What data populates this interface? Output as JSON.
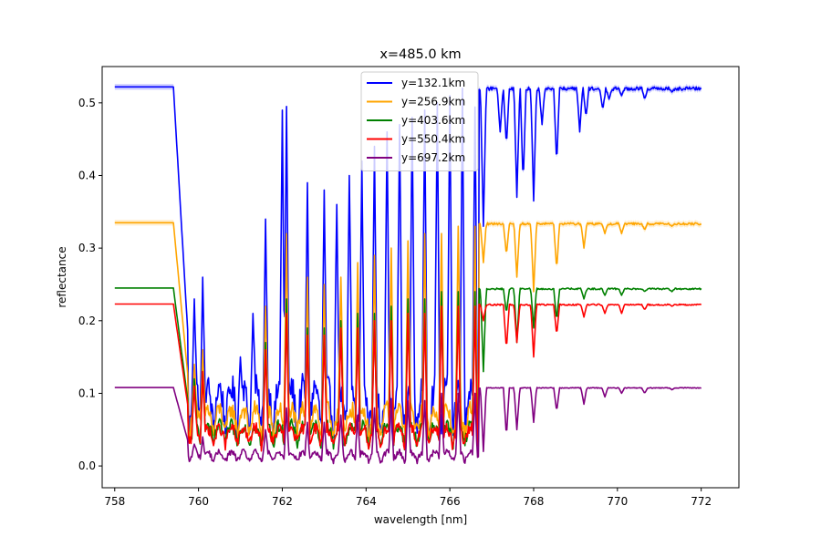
{
  "chart_data": {
    "type": "line",
    "title": "x=485.0 km",
    "xlabel": "wavelength [nm]",
    "ylabel": "reflectance",
    "xlim": [
      757.7,
      772.9
    ],
    "ylim": [
      -0.03,
      0.55
    ],
    "x_ticks": [
      758,
      760,
      762,
      764,
      766,
      768,
      770,
      772
    ],
    "x_tick_labels": [
      "758",
      "760",
      "762",
      "764",
      "766",
      "768",
      "770",
      "772"
    ],
    "y_ticks": [
      0.0,
      0.1,
      0.2,
      0.3,
      0.4,
      0.5
    ],
    "y_tick_labels": [
      "0.0",
      "0.1",
      "0.2",
      "0.3",
      "0.4",
      "0.5"
    ],
    "grid": false,
    "legend_position": "top-center",
    "x_range": [
      758,
      772
    ],
    "band_edge_nm": 759.5,
    "series": [
      {
        "name": "y=132.1km",
        "color": "#0000ff",
        "continuum": 0.522,
        "minimum": 0.03,
        "shaded_band": true,
        "peaks": [
          [
            759.9,
            0.23
          ],
          [
            760.1,
            0.26
          ],
          [
            761.0,
            0.15
          ],
          [
            761.3,
            0.21
          ],
          [
            761.6,
            0.34
          ],
          [
            762.0,
            0.49
          ],
          [
            762.1,
            0.495
          ],
          [
            762.6,
            0.39
          ],
          [
            763.0,
            0.38
          ],
          [
            763.3,
            0.36
          ],
          [
            763.6,
            0.4
          ],
          [
            763.9,
            0.42
          ],
          [
            764.2,
            0.44
          ],
          [
            764.5,
            0.46
          ],
          [
            764.8,
            0.47
          ],
          [
            765.1,
            0.48
          ],
          [
            765.4,
            0.49
          ],
          [
            765.7,
            0.5
          ],
          [
            766.0,
            0.51
          ],
          [
            766.3,
            0.52
          ],
          [
            766.6,
            0.52
          ]
        ],
        "dips": [
          [
            766.55,
            0.43
          ],
          [
            766.8,
            0.33
          ],
          [
            767.2,
            0.46
          ],
          [
            767.35,
            0.44
          ],
          [
            767.6,
            0.37
          ],
          [
            767.75,
            0.39
          ],
          [
            768.0,
            0.365
          ],
          [
            768.2,
            0.47
          ],
          [
            768.55,
            0.415
          ],
          [
            769.1,
            0.46
          ],
          [
            769.25,
            0.48
          ],
          [
            769.65,
            0.49
          ],
          [
            769.8,
            0.505
          ],
          [
            770.1,
            0.51
          ],
          [
            770.65,
            0.505
          ],
          [
            771.3,
            0.515
          ]
        ]
      },
      {
        "name": "y=256.9km",
        "color": "#ffa500",
        "continuum": 0.335,
        "minimum": 0.03,
        "shaded_band": true,
        "peaks": [
          [
            759.9,
            0.14
          ],
          [
            760.1,
            0.16
          ],
          [
            761.6,
            0.22
          ],
          [
            762.1,
            0.32
          ],
          [
            762.6,
            0.26
          ],
          [
            763.0,
            0.25
          ],
          [
            763.4,
            0.26
          ],
          [
            763.8,
            0.28
          ],
          [
            764.2,
            0.29
          ],
          [
            764.6,
            0.3
          ],
          [
            765.0,
            0.31
          ],
          [
            765.4,
            0.32
          ],
          [
            765.8,
            0.32
          ],
          [
            766.2,
            0.33
          ],
          [
            766.6,
            0.33
          ]
        ],
        "dips": [
          [
            766.8,
            0.28
          ],
          [
            767.35,
            0.29
          ],
          [
            767.6,
            0.26
          ],
          [
            768.0,
            0.24
          ],
          [
            768.55,
            0.27
          ],
          [
            769.2,
            0.3
          ],
          [
            769.7,
            0.32
          ],
          [
            770.1,
            0.32
          ],
          [
            770.65,
            0.325
          ],
          [
            771.3,
            0.33
          ]
        ]
      },
      {
        "name": "y=403.6km",
        "color": "#008000",
        "continuum": 0.245,
        "minimum": 0.02,
        "peaks": [
          [
            759.9,
            0.12
          ],
          [
            760.1,
            0.13
          ],
          [
            761.6,
            0.17
          ],
          [
            762.1,
            0.23
          ],
          [
            762.6,
            0.19
          ],
          [
            763.0,
            0.19
          ],
          [
            763.4,
            0.2
          ],
          [
            763.8,
            0.21
          ],
          [
            764.2,
            0.21
          ],
          [
            764.6,
            0.22
          ],
          [
            765.0,
            0.23
          ],
          [
            765.4,
            0.23
          ],
          [
            765.8,
            0.24
          ],
          [
            766.2,
            0.24
          ],
          [
            766.6,
            0.24
          ]
        ],
        "dips": [
          [
            766.8,
            0.13
          ],
          [
            767.35,
            0.21
          ],
          [
            767.6,
            0.17
          ],
          [
            768.0,
            0.19
          ],
          [
            768.55,
            0.2
          ],
          [
            769.2,
            0.23
          ],
          [
            769.7,
            0.235
          ],
          [
            770.1,
            0.235
          ],
          [
            770.65,
            0.24
          ],
          [
            771.3,
            0.24
          ]
        ]
      },
      {
        "name": "y=550.4km",
        "color": "#ff0000",
        "continuum": 0.223,
        "minimum": 0.02,
        "peaks": [
          [
            759.9,
            0.11
          ],
          [
            760.1,
            0.13
          ],
          [
            761.6,
            0.16
          ],
          [
            762.1,
            0.21
          ],
          [
            762.6,
            0.18
          ],
          [
            763.0,
            0.18
          ],
          [
            763.4,
            0.19
          ],
          [
            763.8,
            0.19
          ],
          [
            764.2,
            0.2
          ],
          [
            764.6,
            0.2
          ],
          [
            765.0,
            0.21
          ],
          [
            765.4,
            0.21
          ],
          [
            765.8,
            0.22
          ],
          [
            766.2,
            0.22
          ],
          [
            766.6,
            0.22
          ]
        ],
        "dips": [
          [
            766.8,
            0.2
          ],
          [
            767.35,
            0.16
          ],
          [
            767.6,
            0.17
          ],
          [
            768.0,
            0.15
          ],
          [
            768.55,
            0.18
          ],
          [
            769.2,
            0.205
          ],
          [
            769.7,
            0.21
          ],
          [
            770.1,
            0.21
          ],
          [
            770.65,
            0.215
          ],
          [
            771.3,
            0.22
          ]
        ]
      },
      {
        "name": "y=697.2km",
        "color": "#800080",
        "continuum": 0.108,
        "minimum": 0.002,
        "peaks": [
          [
            759.9,
            0.03
          ],
          [
            760.1,
            0.04
          ],
          [
            761.6,
            0.05
          ],
          [
            762.1,
            0.08
          ],
          [
            762.6,
            0.06
          ],
          [
            763.0,
            0.06
          ],
          [
            763.4,
            0.07
          ],
          [
            763.8,
            0.07
          ],
          [
            764.2,
            0.08
          ],
          [
            764.6,
            0.09
          ],
          [
            765.0,
            0.09
          ],
          [
            765.4,
            0.09
          ],
          [
            765.8,
            0.1
          ],
          [
            766.2,
            0.1
          ],
          [
            766.6,
            0.1
          ]
        ],
        "dips": [
          [
            766.8,
            0.02
          ],
          [
            767.35,
            0.04
          ],
          [
            767.6,
            0.05
          ],
          [
            768.0,
            0.06
          ],
          [
            768.55,
            0.075
          ],
          [
            769.2,
            0.085
          ],
          [
            769.7,
            0.095
          ],
          [
            770.1,
            0.1
          ],
          [
            770.65,
            0.1
          ],
          [
            771.3,
            0.105
          ]
        ]
      }
    ]
  }
}
